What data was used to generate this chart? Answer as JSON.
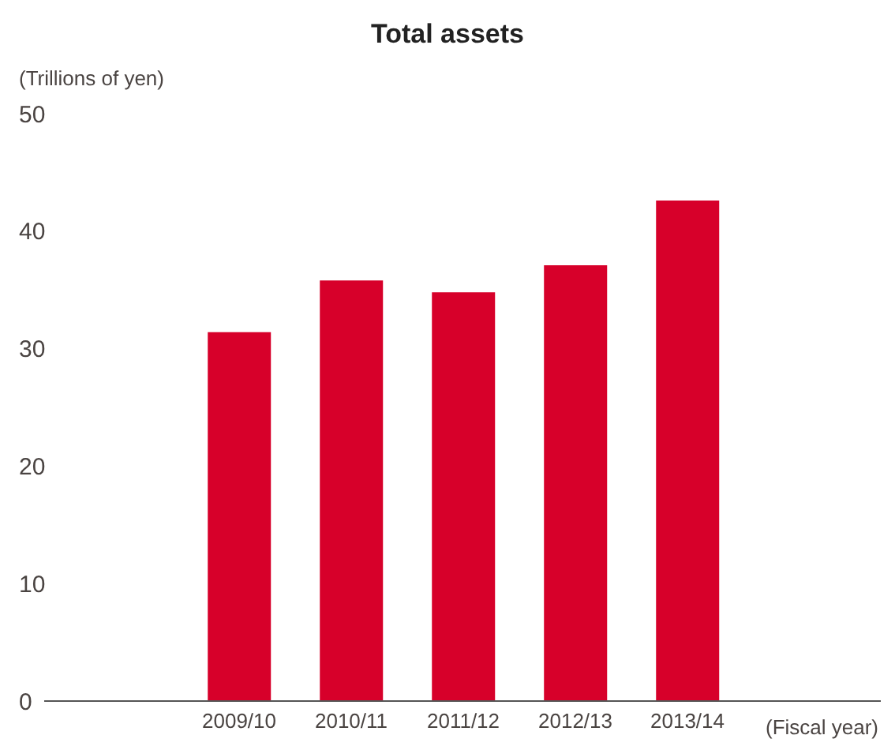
{
  "chart_data": {
    "type": "bar",
    "title": "Total assets",
    "ylabel": "(Trillions of yen)",
    "xlabel": "(Fiscal year)",
    "categories": [
      "2009/10",
      "2010/11",
      "2011/12",
      "2012/13",
      "2013/14"
    ],
    "values": [
      31.4,
      35.8,
      34.8,
      37.1,
      42.6
    ],
    "color": "#d7002a",
    "ylim": [
      0,
      50
    ],
    "yticks": [
      0,
      10,
      20,
      30,
      40,
      50
    ],
    "grid": false
  }
}
